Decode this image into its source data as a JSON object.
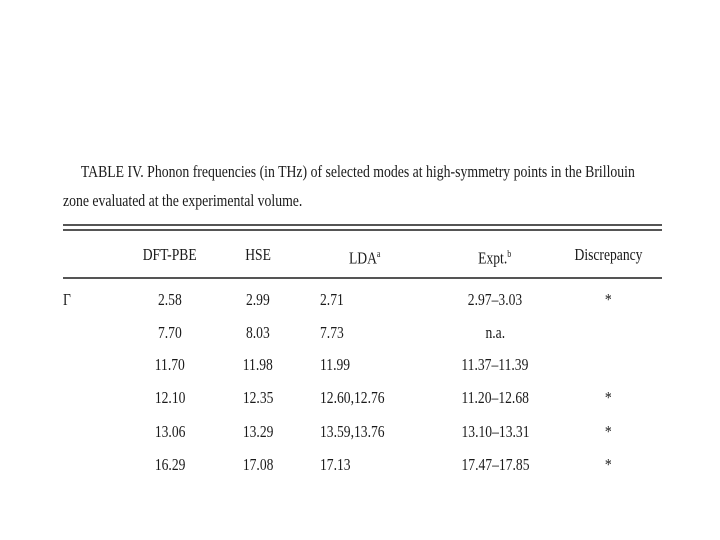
{
  "caption": "TABLE IV. Phonon frequencies (in THz) of selected modes at high-symmetry points in the Brillouin zone evaluated at the experimental volume.",
  "table": {
    "header": [
      {
        "text": "DFT-PBE"
      },
      {
        "text": "HSE"
      },
      {
        "text": "LDA",
        "sup": "a"
      },
      {
        "text": "Expt.",
        "sup": "b"
      },
      {
        "text": "Discrepancy"
      }
    ],
    "rows": [
      {
        "label": "Γ",
        "cells": [
          "2.58",
          "2.99",
          "2.71",
          "2.97–3.03",
          "*"
        ]
      },
      {
        "cells": [
          "7.70",
          "8.03",
          "7.73",
          "n.a.",
          null
        ]
      },
      {
        "cells": [
          "11.70",
          "11.98",
          "11.99",
          "11.37–11.39",
          null
        ]
      },
      {
        "cells": [
          "12.10",
          "12.35",
          "12.60,12.76",
          "11.20–12.68",
          "*"
        ]
      },
      {
        "cells": [
          "13.06",
          "13.29",
          "13.59,13.76",
          "13.10–13.31",
          "*"
        ]
      },
      {
        "cells": [
          "16.29",
          "17.08",
          "17.13",
          "17.47–17.85",
          "*"
        ]
      }
    ]
  }
}
